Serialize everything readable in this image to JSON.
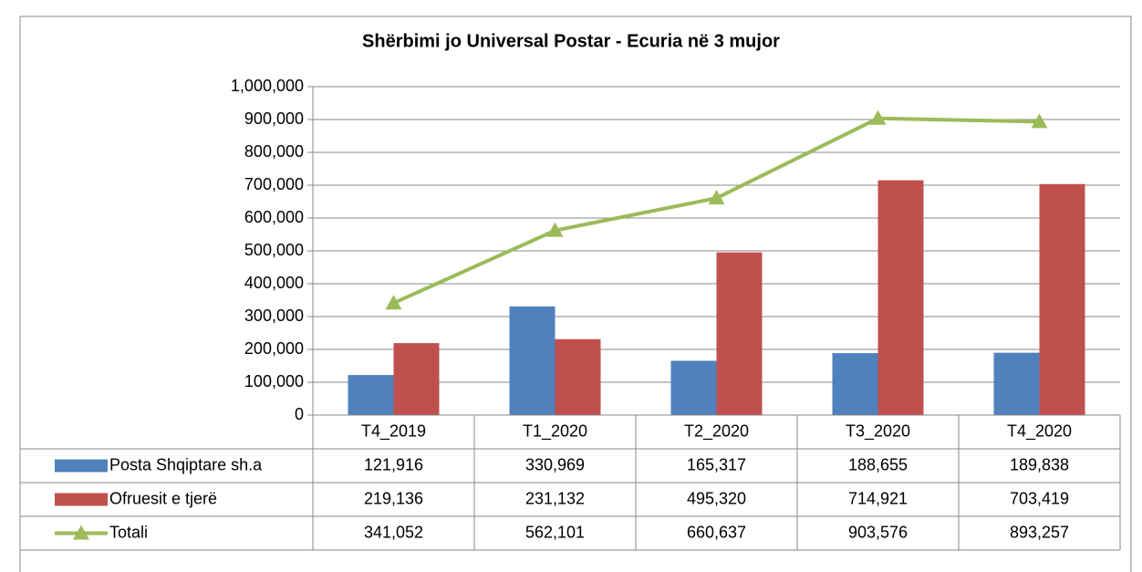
{
  "chart_data": {
    "type": "bar",
    "title": "Shërbimi jo Universal Postar - Ecuria në 3 mujor",
    "categories": [
      "T4_2019",
      "T1_2020",
      "T2_2020",
      "T3_2020",
      "T4_2020"
    ],
    "series": [
      {
        "name": "Posta Shqiptare sh.a",
        "color": "#4f81bd",
        "values": [
          121916,
          330969,
          165317,
          188655,
          189838
        ],
        "value_labels": [
          "121,916",
          "330,969",
          "165,317",
          "188,655",
          "189,838"
        ]
      },
      {
        "name": "Ofruesit e tjerë",
        "color": "#c0504d",
        "values": [
          219136,
          231132,
          495320,
          714921,
          703419
        ],
        "value_labels": [
          "219,136",
          "231,132",
          "495,320",
          "714,921",
          "703,419"
        ]
      },
      {
        "name": "Totali",
        "type": "line",
        "color": "#9bbb59",
        "values": [
          341052,
          562101,
          660637,
          903576,
          893257
        ],
        "value_labels": [
          "341,052",
          "562,101",
          "660,637",
          "903,576",
          "893,257"
        ]
      }
    ],
    "ylim": [
      0,
      1000000
    ],
    "yticks": [
      0,
      {
        "value": 100000,
        "label": "100,000"
      },
      {
        "value": 200000,
        "label": "200,000"
      },
      {
        "value": 300000,
        "label": "300,000"
      },
      {
        "value": 400000,
        "label": "400,000"
      },
      {
        "value": 500000,
        "label": "500,000"
      },
      {
        "value": 600000,
        "label": "600,000"
      },
      {
        "value": 700000,
        "label": "700,000"
      },
      {
        "value": 800000,
        "label": "800,000"
      },
      {
        "value": 900000,
        "label": "900,000"
      },
      {
        "value": 1000000,
        "label": "1,000,000"
      }
    ],
    "grid": true
  }
}
